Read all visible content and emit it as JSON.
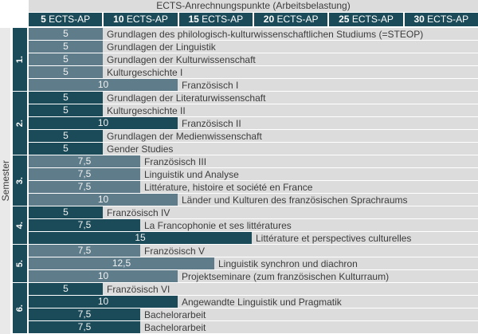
{
  "colors": {
    "dark_teal": "#1b4b59",
    "slate_blue": "#5e7c8a",
    "row_background": "#dcdcdc",
    "strip_background": "#e9e9e9",
    "text": "#3c3c3c"
  },
  "header": {
    "cells": [
      {
        "value": "5",
        "suffix": " ECTS-AP"
      },
      {
        "value": "10",
        "suffix": " ECTS-AP"
      },
      {
        "value": "15",
        "suffix": " ECTS-AP"
      },
      {
        "value": "20",
        "suffix": " ECTS-AP"
      },
      {
        "value": "25",
        "suffix": " ECTS-AP"
      },
      {
        "value": "30",
        "suffix": " ECTS-AP"
      }
    ]
  },
  "chart_data": {
    "type": "bar",
    "orientation": "horizontal",
    "title": "ECTS-Anrechnungspunkte (Arbeitsbelastung)",
    "xlabel": "ECTS-AP",
    "ylabel": "Semester",
    "xlim": [
      0,
      30
    ],
    "x_ticks": [
      5,
      10,
      15,
      20,
      25,
      30
    ],
    "legend": "none",
    "groups": [
      {
        "label": "1.",
        "courses": [
          {
            "ects": 5,
            "ects_label": "5",
            "name": "Grundlagen des philologisch-kulturwissenschaftlichen Studiums (=STEOP)"
          },
          {
            "ects": 5,
            "ects_label": "5",
            "name": "Grundlagen der Linguistik"
          },
          {
            "ects": 5,
            "ects_label": "5",
            "name": "Grundlagen der Kulturwissenschaft"
          },
          {
            "ects": 5,
            "ects_label": "5",
            "name": "Kulturgeschichte I"
          },
          {
            "ects": 10,
            "ects_label": "10",
            "name": "Französisch I"
          }
        ]
      },
      {
        "label": "2.",
        "courses": [
          {
            "ects": 5,
            "ects_label": "5",
            "name": "Grundlagen der Literaturwissenschaft"
          },
          {
            "ects": 5,
            "ects_label": "5",
            "name": "Kulturgeschichte II"
          },
          {
            "ects": 10,
            "ects_label": "10",
            "name": "Französisch II"
          },
          {
            "ects": 5,
            "ects_label": "5",
            "name": "Grundlagen der Medienwissenschaft"
          },
          {
            "ects": 5,
            "ects_label": "5",
            "name": "Gender Studies"
          }
        ]
      },
      {
        "label": "3.",
        "courses": [
          {
            "ects": 7.5,
            "ects_label": "7,5",
            "name": "Französisch III"
          },
          {
            "ects": 7.5,
            "ects_label": "7,5",
            "name": "Linguistik und Analyse"
          },
          {
            "ects": 7.5,
            "ects_label": "7,5",
            "name": "Littérature, histoire et société en France"
          },
          {
            "ects": 10,
            "ects_label": "10",
            "name": "Länder und Kulturen des französischen Sprachraums"
          }
        ]
      },
      {
        "label": "4.",
        "courses": [
          {
            "ects": 5,
            "ects_label": "5",
            "name": "Französisch IV"
          },
          {
            "ects": 7.5,
            "ects_label": "7,5",
            "name": "La Francophonie et ses littératures"
          },
          {
            "ects": 15,
            "ects_label": "15",
            "name": "Littérature et perspectives culturelles"
          }
        ]
      },
      {
        "label": "5.",
        "courses": [
          {
            "ects": 7.5,
            "ects_label": "7,5",
            "name": "Französisch V"
          },
          {
            "ects": 12.5,
            "ects_label": "12,5",
            "name": "Linguistik synchron und diachron"
          },
          {
            "ects": 10,
            "ects_label": "10",
            "name": "Projektseminare (zum französischen Kulturraum)"
          }
        ]
      },
      {
        "label": "6.",
        "courses": [
          {
            "ects": 5,
            "ects_label": "5",
            "name": "Französisch VI"
          },
          {
            "ects": 10,
            "ects_label": "10",
            "name": "Angewandte Linguistik und Pragmatik"
          },
          {
            "ects": 7.5,
            "ects_label": "7,5",
            "name": "Bachelorarbeit"
          },
          {
            "ects": 7.5,
            "ects_label": "7,5",
            "name": "Bachelorarbeit"
          }
        ]
      }
    ]
  }
}
